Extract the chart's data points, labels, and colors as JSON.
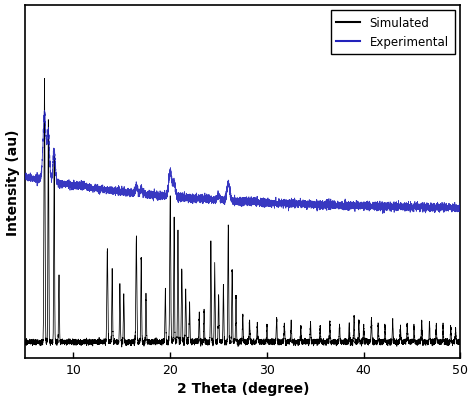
{
  "title": "",
  "xlabel": "2 Theta (degree)",
  "ylabel": "Intensity (au)",
  "xlim": [
    5,
    50
  ],
  "simulated_color": "#000000",
  "experimental_color": "#2222bb",
  "legend_labels": [
    "Simulated",
    "Experimental"
  ],
  "xticks": [
    10,
    20,
    30,
    40,
    50
  ],
  "background_color": "#ffffff",
  "figsize": [
    4.74,
    4.02
  ],
  "dpi": 100
}
